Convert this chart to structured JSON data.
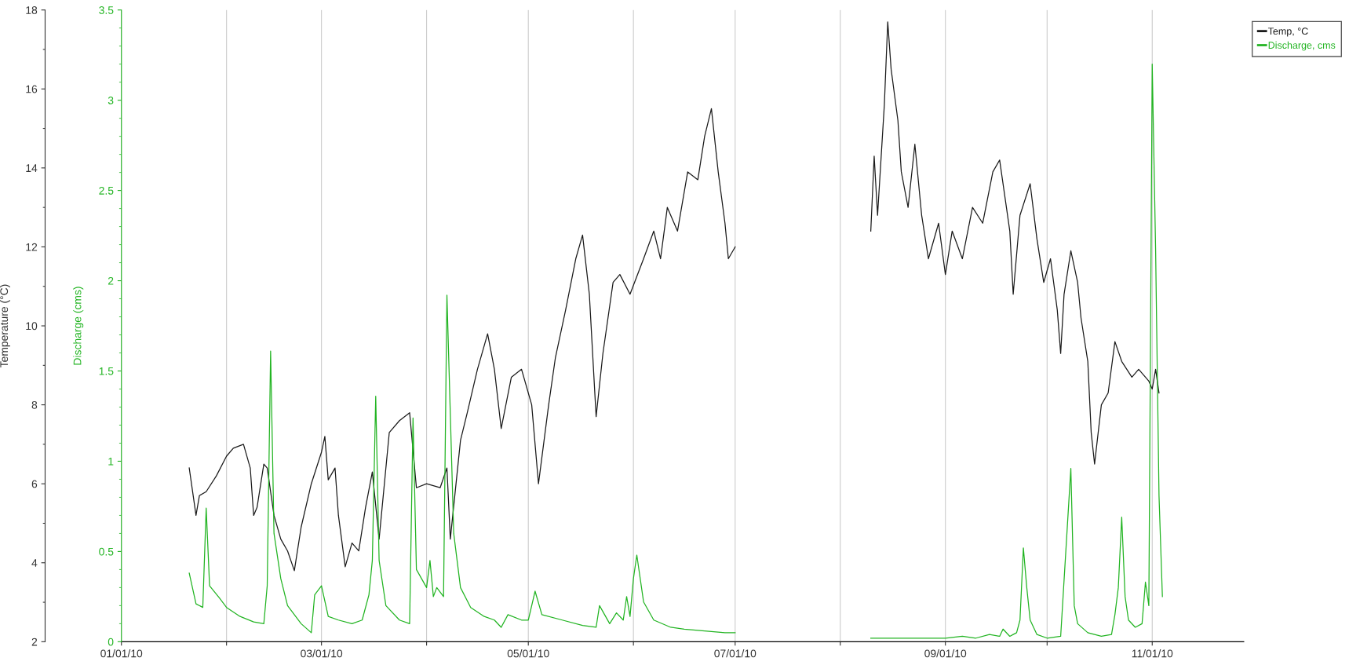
{
  "chart_data": {
    "type": "line",
    "ylabel": "Temperature (°C)",
    "y2label": "Discharge (cms)",
    "xlim": [
      "2010-01-01",
      "2010-11-28"
    ],
    "xticks": [
      {
        "value": "2010-01-01",
        "label": "01/01/10"
      },
      {
        "value": "2010-02-01",
        "label": null
      },
      {
        "value": "2010-03-01",
        "label": "03/01/10"
      },
      {
        "value": "2010-04-01",
        "label": null
      },
      {
        "value": "2010-05-01",
        "label": "05/01/10"
      },
      {
        "value": "2010-06-01",
        "label": null
      },
      {
        "value": "2010-07-01",
        "label": "07/01/10"
      },
      {
        "value": "2010-08-01",
        "label": null
      },
      {
        "value": "2010-09-01",
        "label": "09/01/10"
      },
      {
        "value": "2010-10-01",
        "label": null
      },
      {
        "value": "2010-11-01",
        "label": "11/01/10"
      }
    ],
    "ylim": [
      2,
      18
    ],
    "yticks": [
      2,
      4,
      6,
      8,
      10,
      12,
      14,
      16,
      18
    ],
    "y2lim": [
      0,
      3.5
    ],
    "y2ticks": [
      0,
      0.5,
      1,
      1.5,
      2,
      2.5,
      3,
      3.5
    ],
    "grid": "x",
    "legend": "top right",
    "marker": "none",
    "line_style": "solid",
    "series": [
      {
        "name": "Temp, °C",
        "color": "#1a1a1a",
        "x": [
          "2010-01-21",
          "2010-01-23",
          "2010-01-24",
          "2010-01-26",
          "2010-01-29",
          "2010-02-01",
          "2010-02-03",
          "2010-02-06",
          "2010-02-08",
          "2010-02-09",
          "2010-02-10",
          "2010-02-12",
          "2010-02-13",
          "2010-02-15",
          "2010-02-17",
          "2010-02-19",
          "2010-02-21",
          "2010-02-23",
          "2010-02-26",
          "2010-03-01",
          "2010-03-02",
          "2010-03-03",
          "2010-03-05",
          "2010-03-06",
          "2010-03-08",
          "2010-03-10",
          "2010-03-12",
          "2010-03-14",
          "2010-03-16",
          "2010-03-18",
          "2010-03-21",
          "2010-03-24",
          "2010-03-27",
          "2010-03-29",
          "2010-04-01",
          "2010-04-05",
          "2010-04-07",
          "2010-04-08",
          "2010-04-11",
          "2010-04-13",
          "2010-04-16",
          "2010-04-19",
          "2010-04-21",
          "2010-04-23",
          "2010-04-26",
          "2010-04-29",
          "2010-05-02",
          "2010-05-04",
          "2010-05-07",
          "2010-05-09",
          "2010-05-12",
          "2010-05-15",
          "2010-05-17",
          "2010-05-19",
          "2010-05-21",
          "2010-05-23",
          "2010-05-26",
          "2010-05-28",
          "2010-05-31",
          "2010-06-04",
          "2010-06-07",
          "2010-06-09",
          "2010-06-11",
          "2010-06-14",
          "2010-06-17",
          "2010-06-20",
          "2010-06-22",
          "2010-06-24",
          "2010-06-26",
          "2010-06-28",
          "2010-06-29",
          "2010-07-01",
          "2010-07-20",
          "2010-08-10",
          "2010-08-11",
          "2010-08-12",
          "2010-08-14",
          "2010-08-15",
          "2010-08-16",
          "2010-08-18",
          "2010-08-19",
          "2010-08-21",
          "2010-08-23",
          "2010-08-25",
          "2010-08-27",
          "2010-08-30",
          "2010-09-01",
          "2010-09-03",
          "2010-09-06",
          "2010-09-09",
          "2010-09-12",
          "2010-09-15",
          "2010-09-17",
          "2010-09-20",
          "2010-09-21",
          "2010-09-23",
          "2010-09-26",
          "2010-09-28",
          "2010-09-30",
          "2010-10-02",
          "2010-10-04",
          "2010-10-05",
          "2010-10-06",
          "2010-10-08",
          "2010-10-10",
          "2010-10-11",
          "2010-10-13",
          "2010-10-14",
          "2010-10-15",
          "2010-10-17",
          "2010-10-19",
          "2010-10-21",
          "2010-10-23",
          "2010-10-26",
          "2010-10-28",
          "2010-10-31",
          "2010-11-01",
          "2010-11-02",
          "2010-11-03"
        ],
        "values": [
          6.4,
          5.2,
          5.7,
          5.8,
          6.2,
          6.7,
          6.9,
          7.0,
          6.4,
          5.2,
          5.4,
          6.5,
          6.4,
          5.2,
          4.6,
          4.3,
          3.8,
          4.9,
          6.0,
          6.8,
          7.2,
          6.1,
          6.4,
          5.2,
          3.9,
          4.5,
          4.3,
          5.4,
          6.3,
          4.6,
          7.3,
          7.6,
          7.8,
          5.9,
          6.0,
          5.9,
          6.4,
          4.6,
          7.1,
          7.8,
          8.9,
          9.8,
          8.9,
          7.4,
          8.7,
          8.9,
          8.0,
          6.0,
          8.0,
          9.2,
          10.4,
          11.7,
          12.3,
          10.8,
          7.7,
          9.3,
          11.1,
          11.3,
          10.8,
          11.7,
          12.4,
          11.7,
          13.0,
          12.4,
          13.9,
          13.7,
          14.8,
          15.5,
          13.9,
          12.6,
          11.7,
          12.0,
          null,
          12.4,
          14.3,
          12.8,
          15.6,
          17.7,
          16.5,
          15.2,
          13.9,
          13.0,
          14.6,
          12.8,
          11.7,
          12.6,
          11.3,
          12.4,
          11.7,
          13.0,
          12.6,
          13.9,
          14.2,
          12.4,
          10.8,
          12.8,
          13.6,
          12.2,
          11.1,
          11.7,
          10.4,
          9.3,
          10.8,
          11.9,
          11.1,
          10.2,
          9.1,
          7.3,
          6.5,
          8.0,
          8.3,
          9.6,
          9.1,
          8.7,
          8.9,
          8.6,
          8.4,
          8.9,
          8.3
        ]
      },
      {
        "name": "Discharge, cms",
        "color": "#22b422",
        "axis": "y2",
        "x": [
          "2010-01-21",
          "2010-01-23",
          "2010-01-25",
          "2010-01-26",
          "2010-01-27",
          "2010-01-30",
          "2010-02-01",
          "2010-02-05",
          "2010-02-09",
          "2010-02-12",
          "2010-02-13",
          "2010-02-14",
          "2010-02-15",
          "2010-02-17",
          "2010-02-19",
          "2010-02-23",
          "2010-02-26",
          "2010-02-27",
          "2010-03-01",
          "2010-03-03",
          "2010-03-06",
          "2010-03-10",
          "2010-03-13",
          "2010-03-15",
          "2010-03-16",
          "2010-03-17",
          "2010-03-18",
          "2010-03-20",
          "2010-03-24",
          "2010-03-27",
          "2010-03-28",
          "2010-03-29",
          "2010-04-01",
          "2010-04-02",
          "2010-04-03",
          "2010-04-04",
          "2010-04-06",
          "2010-04-07",
          "2010-04-09",
          "2010-04-11",
          "2010-04-14",
          "2010-04-18",
          "2010-04-21",
          "2010-04-23",
          "2010-04-25",
          "2010-04-29",
          "2010-05-01",
          "2010-05-03",
          "2010-05-05",
          "2010-05-11",
          "2010-05-17",
          "2010-05-21",
          "2010-05-22",
          "2010-05-25",
          "2010-05-27",
          "2010-05-29",
          "2010-05-30",
          "2010-05-31",
          "2010-06-01",
          "2010-06-02",
          "2010-06-04",
          "2010-06-07",
          "2010-06-12",
          "2010-06-16",
          "2010-06-22",
          "2010-06-28",
          "2010-07-01",
          "2010-07-20",
          "2010-08-10",
          "2010-09-01",
          "2010-09-06",
          "2010-09-10",
          "2010-09-14",
          "2010-09-17",
          "2010-09-18",
          "2010-09-20",
          "2010-09-21",
          "2010-09-22",
          "2010-09-23",
          "2010-09-24",
          "2010-09-25",
          "2010-09-26",
          "2010-09-28",
          "2010-10-01",
          "2010-10-05",
          "2010-10-08",
          "2010-10-09",
          "2010-10-10",
          "2010-10-13",
          "2010-10-17",
          "2010-10-20",
          "2010-10-21",
          "2010-10-22",
          "2010-10-23",
          "2010-10-24",
          "2010-10-25",
          "2010-10-27",
          "2010-10-29",
          "2010-10-30",
          "2010-10-31",
          "2010-11-01",
          "2010-11-02",
          "2010-11-03",
          "2010-11-04"
        ],
        "values": [
          0.38,
          0.21,
          0.19,
          0.74,
          0.31,
          0.24,
          0.19,
          0.14,
          0.11,
          0.1,
          0.31,
          1.61,
          0.6,
          0.35,
          0.2,
          0.1,
          0.05,
          0.26,
          0.31,
          0.14,
          0.12,
          0.1,
          0.12,
          0.26,
          0.45,
          1.36,
          0.45,
          0.2,
          0.12,
          0.1,
          1.24,
          0.4,
          0.3,
          0.45,
          0.25,
          0.3,
          0.25,
          1.92,
          0.6,
          0.3,
          0.19,
          0.14,
          0.12,
          0.08,
          0.15,
          0.12,
          0.12,
          0.28,
          0.15,
          0.12,
          0.09,
          0.08,
          0.2,
          0.1,
          0.16,
          0.12,
          0.25,
          0.14,
          0.35,
          0.48,
          0.22,
          0.12,
          0.08,
          0.07,
          0.06,
          0.05,
          0.05,
          null,
          0.02,
          0.02,
          0.03,
          0.02,
          0.04,
          0.03,
          0.07,
          0.03,
          0.04,
          0.05,
          0.12,
          0.52,
          0.3,
          0.12,
          0.04,
          0.02,
          0.03,
          0.96,
          0.2,
          0.1,
          0.05,
          0.03,
          0.04,
          0.15,
          0.3,
          0.69,
          0.25,
          0.12,
          0.08,
          0.1,
          0.33,
          0.2,
          3.2,
          2.17,
          0.81,
          0.25
        ]
      }
    ]
  }
}
